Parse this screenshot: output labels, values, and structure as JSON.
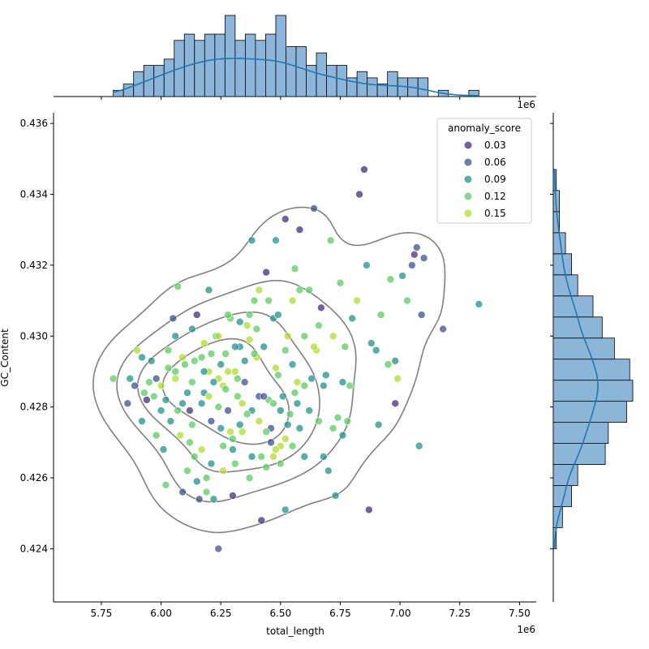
{
  "chart_data": {
    "type": "scatter",
    "title": "",
    "xlabel": "total_length",
    "ylabel": "GC_Content",
    "x_offset_label": "1e6",
    "top_offset_label": "1e6",
    "xlim": [
      5.55,
      7.57
    ],
    "ylim": [
      0.4225,
      0.4363
    ],
    "x_ticks": [
      "5.75",
      "6.00",
      "6.25",
      "6.50",
      "6.75",
      "7.00",
      "7.25",
      "7.50"
    ],
    "x_tick_values": [
      5.75,
      6.0,
      6.25,
      6.5,
      6.75,
      7.0,
      7.25,
      7.5
    ],
    "y_ticks": [
      "0.424",
      "0.426",
      "0.428",
      "0.430",
      "0.432",
      "0.434",
      "0.436"
    ],
    "y_tick_values": [
      0.424,
      0.426,
      0.428,
      0.43,
      0.432,
      0.434,
      0.436
    ],
    "grid": false,
    "legend": {
      "title": "anomaly_score",
      "placement": "top-right",
      "entries": [
        {
          "label": "0.03",
          "color": "#472d7b"
        },
        {
          "label": "0.06",
          "color": "#3b528b"
        },
        {
          "label": "0.09",
          "color": "#21918c"
        },
        {
          "label": "0.12",
          "color": "#5ec962"
        },
        {
          "label": "0.15",
          "color": "#addc30"
        }
      ]
    },
    "points": [
      [
        5.8,
        0.4288,
        0.12
      ],
      [
        5.86,
        0.4281,
        0.06
      ],
      [
        5.87,
        0.4288,
        0.09
      ],
      [
        5.89,
        0.4286,
        0.06
      ],
      [
        5.9,
        0.4296,
        0.15
      ],
      [
        5.92,
        0.4294,
        0.09
      ],
      [
        5.92,
        0.4276,
        0.09
      ],
      [
        5.93,
        0.4284,
        0.12
      ],
      [
        5.94,
        0.4282,
        0.03
      ],
      [
        5.95,
        0.4287,
        0.12
      ],
      [
        5.96,
        0.4293,
        0.09
      ],
      [
        5.98,
        0.4272,
        0.12
      ],
      [
        5.98,
        0.4288,
        0.06
      ],
      [
        6.0,
        0.4286,
        0.15
      ],
      [
        6.01,
        0.4268,
        0.09
      ],
      [
        6.02,
        0.4282,
        0.09
      ],
      [
        6.02,
        0.4258,
        0.12
      ],
      [
        6.03,
        0.4296,
        0.12
      ],
      [
        6.04,
        0.4276,
        0.09
      ],
      [
        6.05,
        0.4305,
        0.06
      ],
      [
        6.06,
        0.43,
        0.09
      ],
      [
        6.06,
        0.429,
        0.12
      ],
      [
        6.07,
        0.4314,
        0.12
      ],
      [
        6.08,
        0.4272,
        0.15
      ],
      [
        6.09,
        0.4256,
        0.06
      ],
      [
        6.1,
        0.4292,
        0.12
      ],
      [
        6.11,
        0.4284,
        0.09
      ],
      [
        6.12,
        0.4279,
        0.03
      ],
      [
        6.12,
        0.427,
        0.12
      ],
      [
        6.13,
        0.4302,
        0.09
      ],
      [
        6.14,
        0.4266,
        0.12
      ],
      [
        6.15,
        0.4306,
        0.03
      ],
      [
        6.16,
        0.4254,
        0.06
      ],
      [
        6.17,
        0.4294,
        0.12
      ],
      [
        6.18,
        0.4284,
        0.09
      ],
      [
        6.19,
        0.426,
        0.12
      ],
      [
        6.2,
        0.4313,
        0.09
      ],
      [
        6.2,
        0.429,
        0.15
      ],
      [
        6.21,
        0.4276,
        0.06
      ],
      [
        6.22,
        0.4254,
        0.09
      ],
      [
        6.23,
        0.43,
        0.12
      ],
      [
        6.24,
        0.4288,
        0.15
      ],
      [
        6.24,
        0.424,
        0.06
      ],
      [
        6.25,
        0.4274,
        0.09
      ],
      [
        6.26,
        0.4286,
        0.15
      ],
      [
        6.27,
        0.4295,
        0.12
      ],
      [
        6.28,
        0.4279,
        0.06
      ],
      [
        6.29,
        0.4305,
        0.12
      ],
      [
        6.3,
        0.4255,
        0.03
      ],
      [
        6.3,
        0.4268,
        0.09
      ],
      [
        6.31,
        0.429,
        0.15
      ],
      [
        6.32,
        0.4283,
        0.12
      ],
      [
        6.33,
        0.4297,
        0.09
      ],
      [
        6.34,
        0.4273,
        0.15
      ],
      [
        6.35,
        0.4287,
        0.06
      ],
      [
        6.36,
        0.4303,
        0.15
      ],
      [
        6.37,
        0.426,
        0.12
      ],
      [
        6.38,
        0.4279,
        0.09
      ],
      [
        6.38,
        0.4327,
        0.09
      ],
      [
        6.39,
        0.431,
        0.12
      ],
      [
        6.4,
        0.4294,
        0.15
      ],
      [
        6.41,
        0.4283,
        0.06
      ],
      [
        6.42,
        0.4248,
        0.03
      ],
      [
        6.42,
        0.4266,
        0.12
      ],
      [
        6.43,
        0.4297,
        0.09
      ],
      [
        6.44,
        0.4318,
        0.03
      ],
      [
        6.45,
        0.4282,
        0.12
      ],
      [
        6.46,
        0.427,
        0.06
      ],
      [
        6.47,
        0.4305,
        0.09
      ],
      [
        6.48,
        0.4327,
        0.09
      ],
      [
        6.49,
        0.4289,
        0.12
      ],
      [
        6.5,
        0.4269,
        0.15
      ],
      [
        6.51,
        0.4283,
        0.09
      ],
      [
        6.52,
        0.4251,
        0.09
      ],
      [
        6.52,
        0.4333,
        0.03
      ],
      [
        6.53,
        0.43,
        0.15
      ],
      [
        6.54,
        0.4278,
        0.12
      ],
      [
        6.55,
        0.4292,
        0.09
      ],
      [
        6.56,
        0.4319,
        0.12
      ],
      [
        6.57,
        0.4287,
        0.15
      ],
      [
        6.58,
        0.4274,
        0.09
      ],
      [
        6.58,
        0.433,
        0.03
      ],
      [
        6.6,
        0.43,
        0.12
      ],
      [
        6.6,
        0.4266,
        0.09
      ],
      [
        6.62,
        0.4313,
        0.12
      ],
      [
        6.63,
        0.4288,
        0.09
      ],
      [
        6.64,
        0.4336,
        0.06
      ],
      [
        6.65,
        0.4296,
        0.15
      ],
      [
        6.66,
        0.4276,
        0.12
      ],
      [
        6.67,
        0.4308,
        0.03
      ],
      [
        6.68,
        0.4266,
        0.09
      ],
      [
        6.69,
        0.4289,
        0.09
      ],
      [
        6.7,
        0.4262,
        0.09
      ],
      [
        6.71,
        0.4327,
        0.12
      ],
      [
        6.72,
        0.43,
        0.15
      ],
      [
        6.73,
        0.4255,
        0.09
      ],
      [
        6.74,
        0.4277,
        0.12
      ],
      [
        6.75,
        0.4315,
        0.12
      ],
      [
        6.76,
        0.4287,
        0.09
      ],
      [
        6.77,
        0.4297,
        0.12
      ],
      [
        6.78,
        0.4276,
        0.12
      ],
      [
        6.8,
        0.4305,
        0.09
      ],
      [
        6.82,
        0.431,
        0.15
      ],
      [
        6.83,
        0.434,
        0.03
      ],
      [
        6.85,
        0.4347,
        0.03
      ],
      [
        6.86,
        0.432,
        0.09
      ],
      [
        6.87,
        0.4251,
        0.03
      ],
      [
        6.88,
        0.4298,
        0.09
      ],
      [
        6.9,
        0.4296,
        0.09
      ],
      [
        6.91,
        0.4275,
        0.09
      ],
      [
        6.92,
        0.4306,
        0.12
      ],
      [
        6.95,
        0.4292,
        0.12
      ],
      [
        6.96,
        0.4316,
        0.12
      ],
      [
        6.98,
        0.4281,
        0.03
      ],
      [
        6.98,
        0.4293,
        0.09
      ],
      [
        6.99,
        0.4288,
        0.15
      ],
      [
        7.01,
        0.4317,
        0.09
      ],
      [
        7.03,
        0.431,
        0.12
      ],
      [
        7.05,
        0.432,
        0.06
      ],
      [
        7.06,
        0.4323,
        0.03
      ],
      [
        7.07,
        0.4325,
        0.06
      ],
      [
        7.08,
        0.4269,
        0.09
      ],
      [
        7.09,
        0.4306,
        0.06
      ],
      [
        7.1,
        0.4322,
        0.06
      ],
      [
        7.18,
        0.4302,
        0.06
      ],
      [
        7.33,
        0.4309,
        0.09
      ],
      [
        6.3,
        0.4271,
        0.12
      ],
      [
        6.34,
        0.4281,
        0.15
      ],
      [
        6.27,
        0.4285,
        0.12
      ],
      [
        6.22,
        0.4287,
        0.09
      ],
      [
        6.18,
        0.4298,
        0.15
      ],
      [
        6.14,
        0.4293,
        0.12
      ],
      [
        6.25,
        0.4292,
        0.09
      ],
      [
        6.28,
        0.429,
        0.15
      ],
      [
        6.32,
        0.4288,
        0.12
      ],
      [
        6.35,
        0.4293,
        0.09
      ],
      [
        6.37,
        0.4299,
        0.15
      ],
      [
        6.4,
        0.4302,
        0.12
      ],
      [
        6.43,
        0.4283,
        0.06
      ],
      [
        6.47,
        0.4281,
        0.12
      ],
      [
        6.5,
        0.4279,
        0.09
      ],
      [
        6.52,
        0.4271,
        0.15
      ],
      [
        6.55,
        0.4269,
        0.12
      ],
      [
        6.57,
        0.4281,
        0.09
      ],
      [
        6.48,
        0.4268,
        0.15
      ],
      [
        6.46,
        0.4274,
        0.06
      ],
      [
        6.44,
        0.4273,
        0.12
      ],
      [
        6.41,
        0.4276,
        0.15
      ],
      [
        6.36,
        0.4278,
        0.12
      ],
      [
        6.33,
        0.4275,
        0.09
      ],
      [
        6.29,
        0.4273,
        0.15
      ],
      [
        6.26,
        0.4269,
        0.12
      ],
      [
        6.21,
        0.4264,
        0.09
      ],
      [
        6.17,
        0.4268,
        0.15
      ],
      [
        6.13,
        0.4275,
        0.12
      ],
      [
        6.09,
        0.4281,
        0.09
      ],
      [
        6.06,
        0.4288,
        0.15
      ],
      [
        6.03,
        0.4291,
        0.12
      ],
      [
        6.0,
        0.4279,
        0.09
      ],
      [
        5.97,
        0.4283,
        0.12
      ],
      [
        6.6,
        0.4286,
        0.12
      ],
      [
        6.62,
        0.4279,
        0.09
      ],
      [
        6.64,
        0.4297,
        0.15
      ],
      [
        6.66,
        0.4303,
        0.12
      ],
      [
        6.68,
        0.4286,
        0.09
      ],
      [
        6.72,
        0.4274,
        0.12
      ],
      [
        6.76,
        0.4272,
        0.09
      ],
      [
        6.79,
        0.4286,
        0.12
      ],
      [
        6.58,
        0.4313,
        0.12
      ],
      [
        6.55,
        0.431,
        0.15
      ],
      [
        6.52,
        0.4296,
        0.12
      ],
      [
        6.49,
        0.4306,
        0.09
      ],
      [
        6.45,
        0.431,
        0.12
      ],
      [
        6.41,
        0.4313,
        0.15
      ],
      [
        6.37,
        0.4306,
        0.12
      ],
      [
        6.33,
        0.4304,
        0.09
      ],
      [
        6.28,
        0.4306,
        0.12
      ],
      [
        6.24,
        0.43,
        0.15
      ],
      [
        6.21,
        0.4295,
        0.12
      ],
      [
        6.18,
        0.429,
        0.09
      ],
      [
        6.11,
        0.4262,
        0.12
      ],
      [
        6.15,
        0.4259,
        0.09
      ],
      [
        6.19,
        0.4256,
        0.12
      ],
      [
        6.26,
        0.4262,
        0.15
      ],
      [
        6.31,
        0.4264,
        0.12
      ],
      [
        6.38,
        0.4266,
        0.09
      ],
      [
        6.44,
        0.4263,
        0.12
      ],
      [
        6.47,
        0.4266,
        0.15
      ],
      [
        6.5,
        0.4264,
        0.12
      ],
      [
        6.53,
        0.4275,
        0.09
      ],
      [
        6.56,
        0.4284,
        0.12
      ],
      [
        6.48,
        0.4291,
        0.15
      ],
      [
        6.39,
        0.4295,
        0.12
      ],
      [
        6.31,
        0.4297,
        0.09
      ],
      [
        6.24,
        0.428,
        0.12
      ],
      [
        6.2,
        0.4283,
        0.15
      ],
      [
        6.17,
        0.4281,
        0.09
      ],
      [
        6.13,
        0.4287,
        0.12
      ],
      [
        6.09,
        0.4294,
        0.15
      ],
      [
        6.07,
        0.4279,
        0.12
      ]
    ]
  }
}
